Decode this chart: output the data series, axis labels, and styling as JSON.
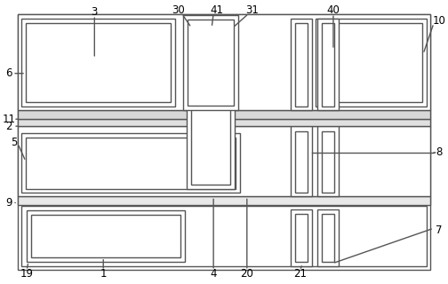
{
  "fig_width": 5.04,
  "fig_height": 3.2,
  "dpi": 100,
  "line_color": "#555555",
  "line_width": 1.0,
  "bg_color": "#ffffff",
  "label_fontsize": 8.5
}
